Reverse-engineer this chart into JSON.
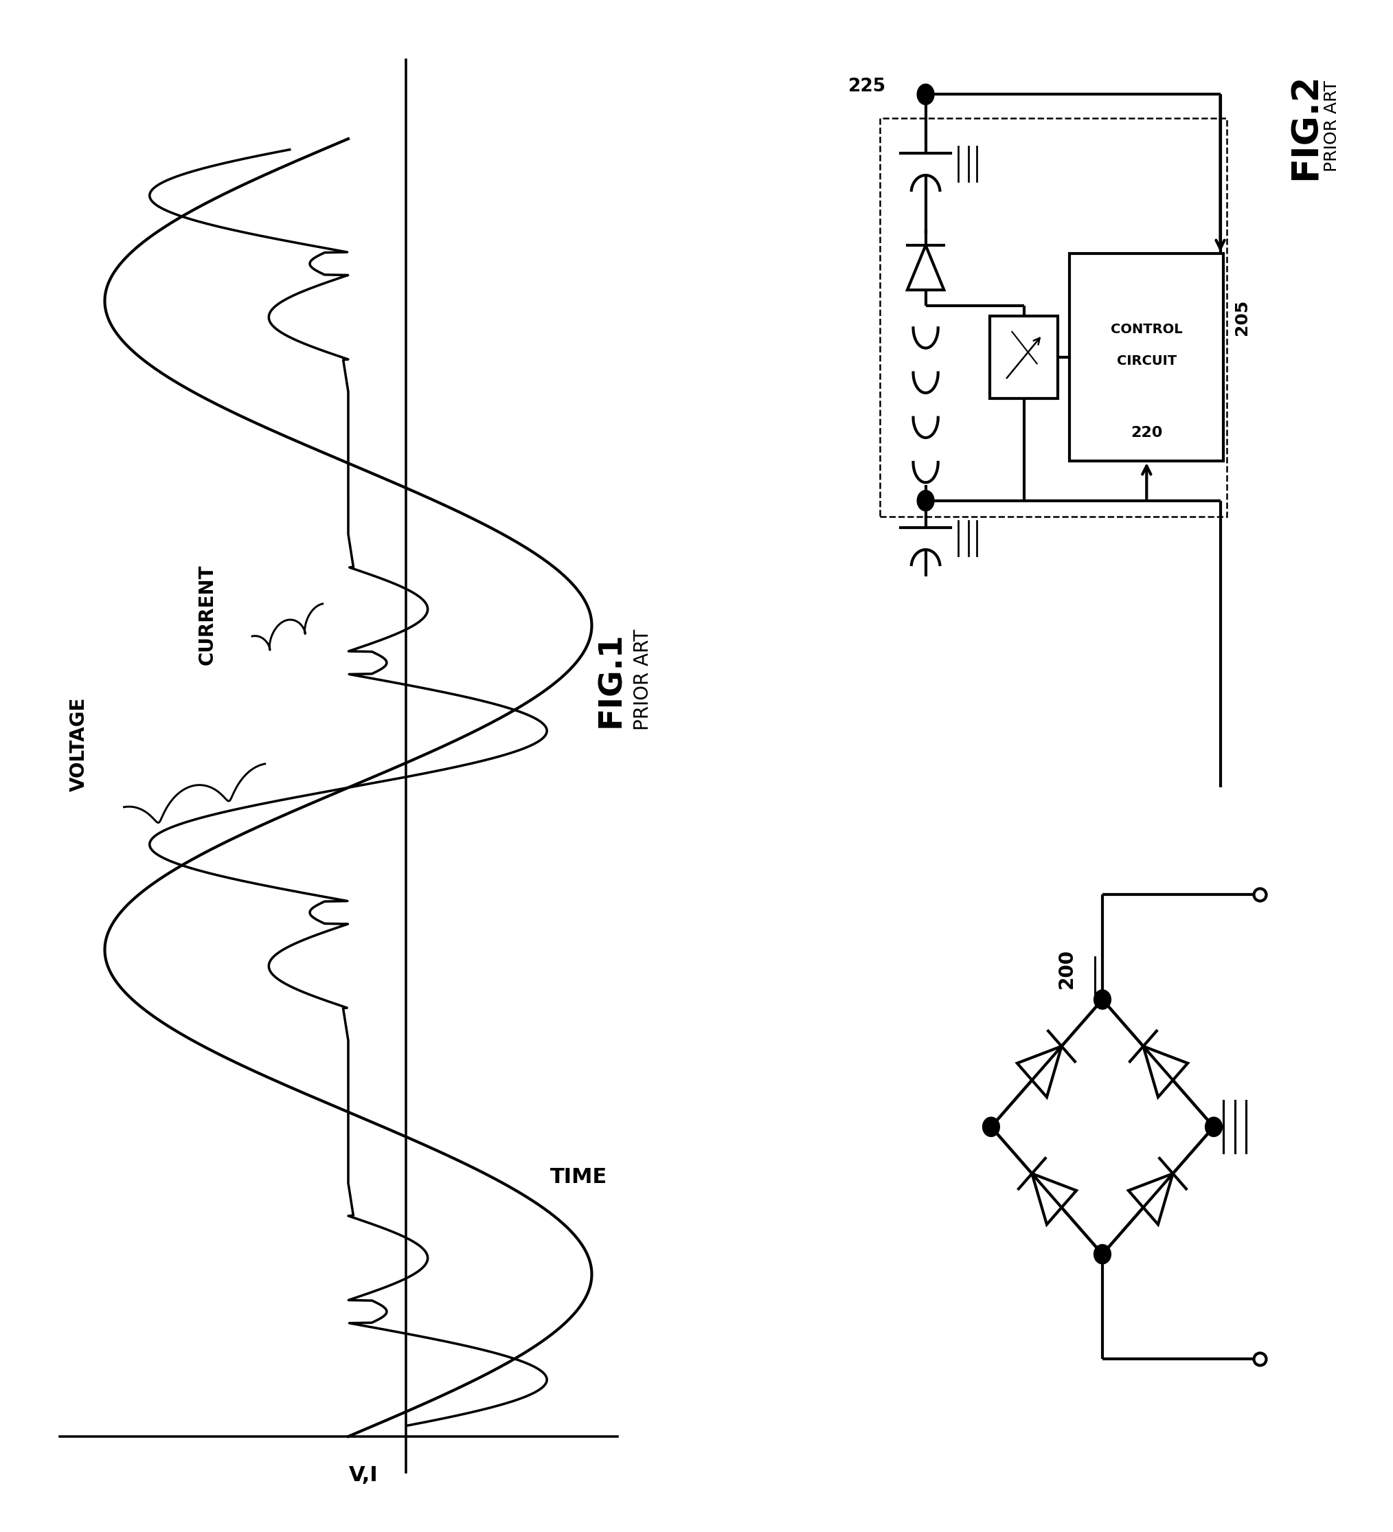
{
  "background_color": "#ffffff",
  "fig_width": 20.28,
  "fig_height": 22.3,
  "fig1_label": "FIG.1",
  "fig1_sublabel": "PRIOR ART",
  "fig2_label": "FIG.2",
  "fig2_sublabel": "PRIOR ART",
  "voltage_label": "VOLTAGE",
  "current_label": "CURRENT",
  "time_label": "TIME",
  "vi_label": "V,I",
  "label_225": "225",
  "label_220": "220",
  "label_205": "205",
  "label_200": "200",
  "line_color": "#000000",
  "line_width": 3.0
}
